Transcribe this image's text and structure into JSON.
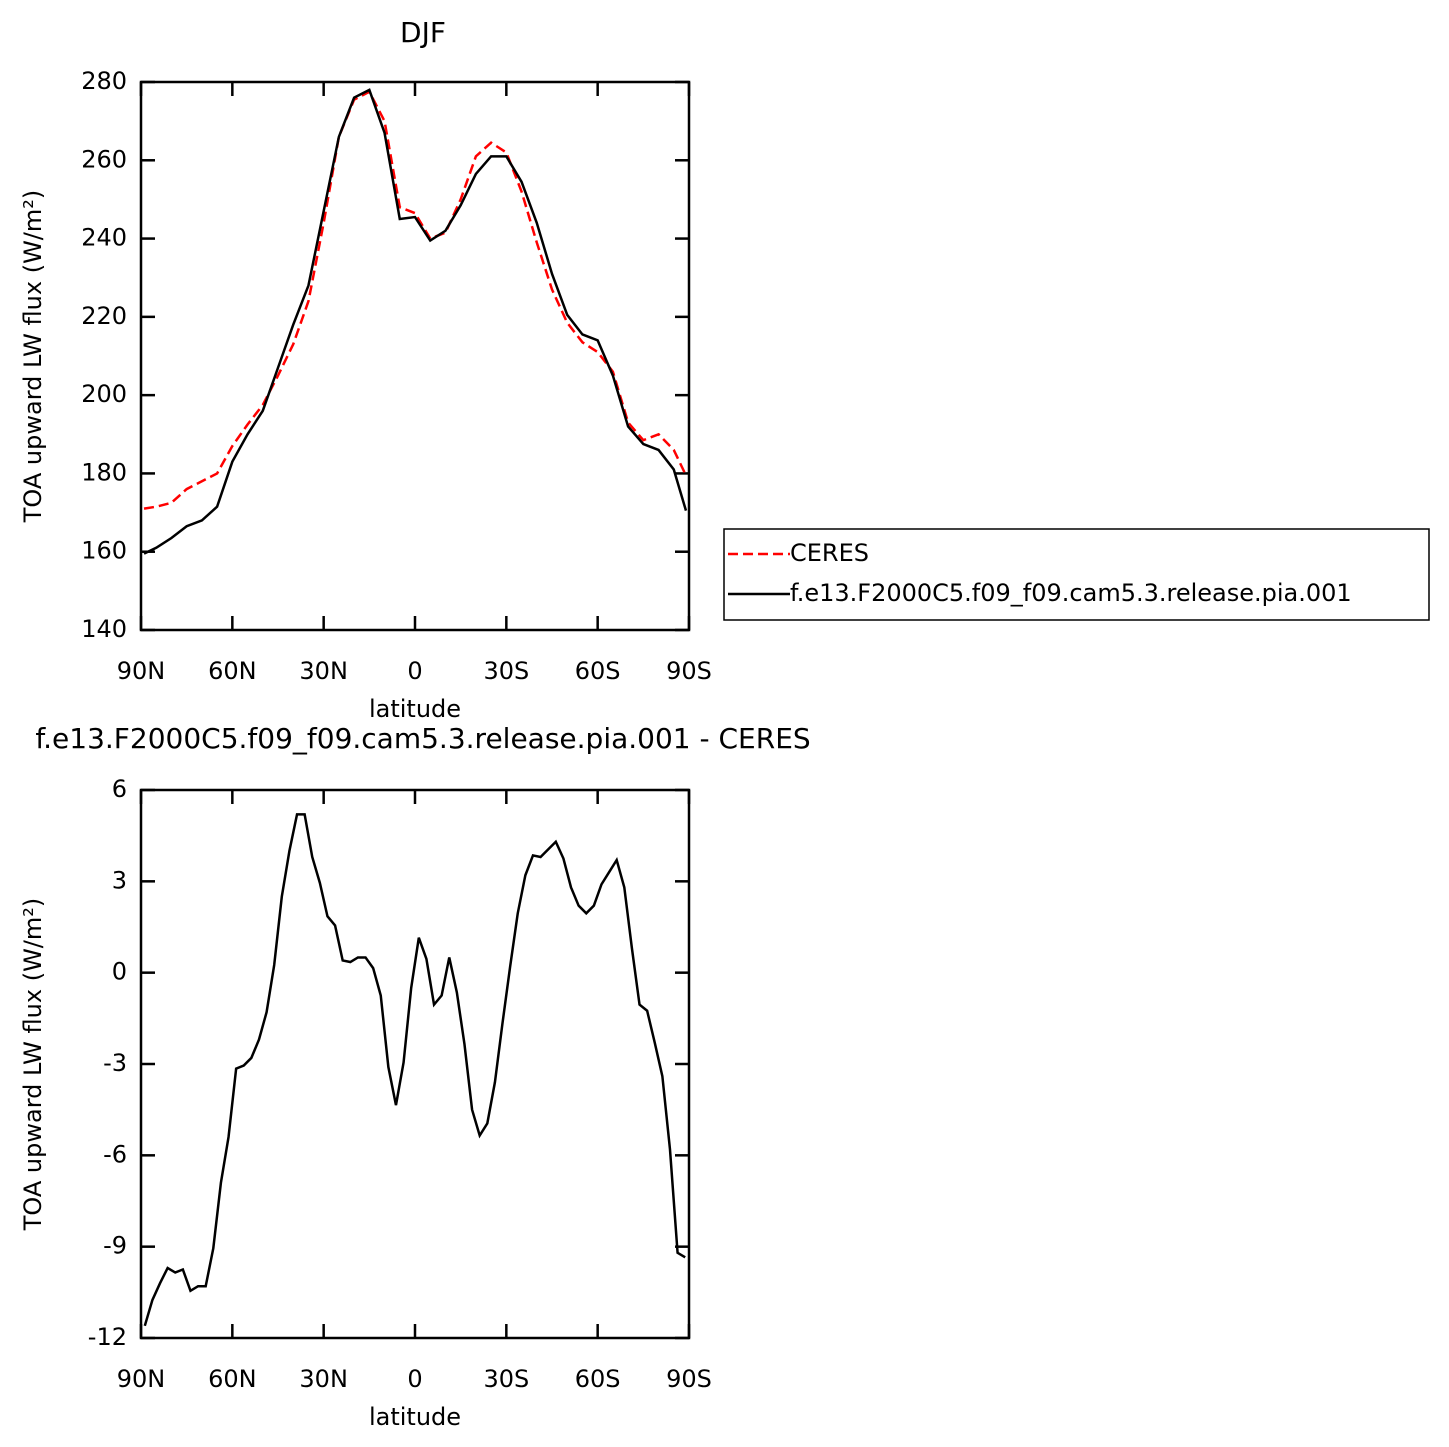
{
  "chart_data": [
    {
      "type": "line",
      "title": "DJF",
      "xlabel": "latitude",
      "ylabel": "TOA upward LW flux (W/m²)",
      "x": [
        89,
        85,
        80,
        75,
        70,
        65,
        60,
        55,
        50,
        45,
        40,
        35,
        30,
        25,
        20,
        15,
        10,
        5,
        0,
        -5,
        -10,
        -15,
        -20,
        -25,
        -30,
        -35,
        -40,
        -45,
        -50,
        -55,
        -60,
        -65,
        -70,
        -75,
        -80,
        -85,
        -89
      ],
      "series": [
        {
          "name": "CERES",
          "color": "#ff0000",
          "linestyle": "dashed",
          "values": [
            171,
            171.5,
            172.5,
            176,
            178,
            180,
            187,
            192.5,
            197.5,
            205,
            213,
            224,
            244,
            266,
            275.5,
            277.5,
            270,
            248,
            246.5,
            240,
            241.5,
            250,
            261,
            264.5,
            262,
            252,
            239,
            227,
            218.5,
            213.5,
            211,
            206,
            193,
            188.5,
            190,
            186,
            179.5
          ]
        },
        {
          "name": "f.e13.F2000C5.f09_f09.cam5.3.release.pia.001",
          "color": "#000000",
          "linestyle": "solid",
          "values": [
            159.5,
            161,
            163.5,
            166.5,
            168,
            171.5,
            183,
            190,
            196,
            207,
            218,
            228,
            247,
            266,
            276,
            278,
            267,
            245,
            245.5,
            239.5,
            242,
            248.5,
            256.5,
            261,
            261,
            254.5,
            244,
            231,
            220.5,
            215.5,
            214,
            205,
            192,
            187.5,
            186,
            181,
            170.5
          ]
        }
      ],
      "xlim": [
        90,
        -90
      ],
      "xticks": [
        {
          "value": 90,
          "label": "90N"
        },
        {
          "value": 60,
          "label": "60N"
        },
        {
          "value": 30,
          "label": "30N"
        },
        0,
        {
          "value": -30,
          "label": "30S"
        },
        {
          "value": -60,
          "label": "60S"
        },
        {
          "value": -90,
          "label": "90S"
        }
      ],
      "ylim": [
        140,
        280
      ],
      "yticks": [
        140,
        160,
        180,
        200,
        220,
        240,
        260,
        280
      ],
      "legend": "right"
    },
    {
      "type": "line",
      "title": "f.e13.F2000C5.f09_f09.cam5.3.release.pia.001 - CERES",
      "xlabel": "latitude",
      "ylabel": "TOA upward LW flux (W/m²)",
      "x": [
        88.75,
        86.25,
        83.75,
        81.25,
        78.75,
        76.25,
        73.75,
        71.25,
        68.75,
        66.25,
        63.75,
        61.25,
        58.75,
        56.25,
        53.75,
        51.25,
        48.75,
        46.25,
        43.75,
        41.25,
        38.75,
        36.25,
        33.75,
        31.25,
        28.75,
        26.25,
        23.75,
        21.25,
        18.75,
        16.25,
        13.75,
        11.25,
        8.75,
        6.25,
        3.75,
        1.25,
        -1.25,
        -3.75,
        -6.25,
        -8.75,
        -11.25,
        -13.75,
        -16.25,
        -18.75,
        -21.25,
        -23.75,
        -26.25,
        -28.75,
        -31.25,
        -33.75,
        -36.25,
        -38.75,
        -41.25,
        -43.75,
        -46.25,
        -48.75,
        -51.25,
        -53.75,
        -56.25,
        -58.75,
        -61.25,
        -63.75,
        -66.25,
        -68.75,
        -71.25,
        -73.75,
        -76.25,
        -78.75,
        -81.25,
        -83.75,
        -86.25,
        -88.75
      ],
      "series": [
        {
          "color": "#000000",
          "linestyle": "solid",
          "values": [
            -11.6,
            -10.75,
            -10.2,
            -9.7,
            -9.85,
            -9.75,
            -10.45,
            -10.3,
            -10.3,
            -9.05,
            -6.9,
            -5.4,
            -3.15,
            -3.05,
            -2.8,
            -2.2,
            -1.3,
            0.25,
            2.5,
            4.0,
            5.2,
            5.2,
            3.8,
            2.95,
            1.85,
            1.55,
            0.4,
            0.35,
            0.5,
            0.5,
            0.15,
            -0.75,
            -3.1,
            -4.35,
            -2.95,
            -0.5,
            1.15,
            0.45,
            -1.05,
            -0.75,
            0.5,
            -0.65,
            -2.35,
            -4.5,
            -5.35,
            -4.95,
            -3.6,
            -1.65,
            0.2,
            1.95,
            3.2,
            3.85,
            3.8,
            4.05,
            4.3,
            3.75,
            2.8,
            2.2,
            1.95,
            2.2,
            2.9,
            3.3,
            3.7,
            2.8,
            0.8,
            -1.05,
            -1.25,
            -2.3,
            -3.4,
            -5.8,
            -9.2,
            -9.35
          ]
        }
      ],
      "xlim": [
        90,
        -90
      ],
      "xticks": [
        {
          "value": 90,
          "label": "90N"
        },
        {
          "value": 60,
          "label": "60N"
        },
        {
          "value": 30,
          "label": "30N"
        },
        0,
        {
          "value": -30,
          "label": "30S"
        },
        {
          "value": -60,
          "label": "60S"
        },
        {
          "value": -90,
          "label": "90S"
        }
      ],
      "ylim": [
        -12,
        6
      ],
      "yticks": [
        -12,
        -9,
        -6,
        -3,
        0,
        3,
        6
      ]
    }
  ]
}
